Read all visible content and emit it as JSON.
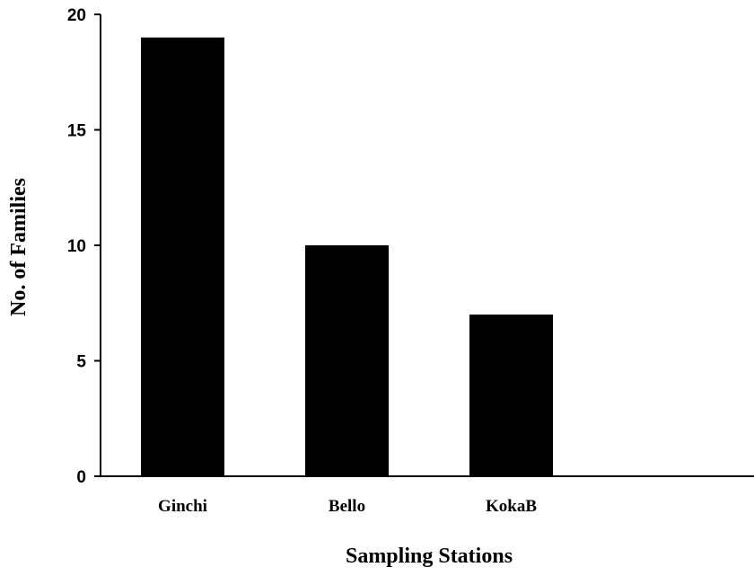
{
  "chart_data": {
    "type": "bar",
    "categories": [
      "Ginchi",
      "Bello",
      "KokaB"
    ],
    "values": [
      19,
      10,
      7
    ],
    "xlabel": "Sampling Stations",
    "ylabel": "No. of Families",
    "ylim": [
      0,
      20
    ],
    "yticks": [
      0,
      5,
      10,
      15,
      20
    ],
    "bar_color": "#000000",
    "grid": false,
    "legend": "none"
  }
}
